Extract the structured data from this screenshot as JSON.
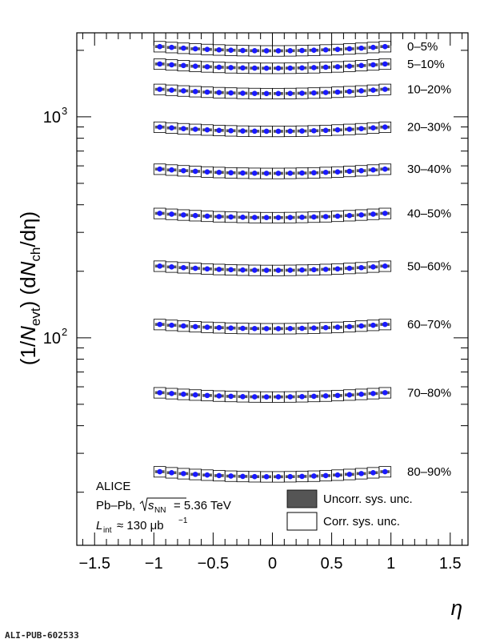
{
  "chart_data": {
    "type": "scatter",
    "xlabel": "η",
    "ylabel_parts": {
      "open": "(1/",
      "n": "N",
      "n_sub": "evt",
      "mid": ") (d",
      "n2": "N",
      "n2_sub": "ch",
      "close": "/dη)"
    },
    "yscale": "log",
    "xlim": [
      -1.65,
      1.65
    ],
    "ylim": [
      11.5,
      2400
    ],
    "x_ticks": [
      -1.5,
      -1,
      -0.5,
      0,
      0.5,
      1,
      1.5
    ],
    "x_tick_labels": [
      "−1.5",
      "−1",
      "−0.5",
      "0",
      "0.5",
      "1",
      "1.5"
    ],
    "y_tick_labels": [
      {
        "value": 100,
        "base": "10",
        "exp": "2"
      },
      {
        "value": 1000,
        "base": "10",
        "exp": "3"
      }
    ],
    "x": [
      -0.95,
      -0.85,
      -0.75,
      -0.65,
      -0.55,
      -0.45,
      -0.35,
      -0.25,
      -0.15,
      -0.05,
      0.05,
      0.15,
      0.25,
      0.35,
      0.45,
      0.55,
      0.65,
      0.75,
      0.85,
      0.95
    ],
    "x_bin_half_width": 0.05,
    "series": [
      {
        "name": "0–5%",
        "center": 1990,
        "edge_rise": 0.05
      },
      {
        "name": "5–10%",
        "center": 1660,
        "edge_rise": 0.05
      },
      {
        "name": "10–20%",
        "center": 1275,
        "edge_rise": 0.05
      },
      {
        "name": "20–30%",
        "center": 860,
        "edge_rise": 0.05
      },
      {
        "name": "30–40%",
        "center": 555,
        "edge_rise": 0.05
      },
      {
        "name": "40–50%",
        "center": 350,
        "edge_rise": 0.05
      },
      {
        "name": "50–60%",
        "center": 202,
        "edge_rise": 0.05
      },
      {
        "name": "60–70%",
        "center": 110,
        "edge_rise": 0.05
      },
      {
        "name": "70–80%",
        "center": 54,
        "edge_rise": 0.05
      },
      {
        "name": "80–90%",
        "center": 23.5,
        "edge_rise": 0.06
      }
    ],
    "corr_sys_frac": 0.055,
    "uncorr_sys_frac": 0.015,
    "annotations": {
      "experiment": "ALICE",
      "system": "Pb–Pb,",
      "sqrt_s_symbol": "s",
      "sqrt_s_sub": "NN",
      "energy": "= 5.36 TeV",
      "lumi_symbol": "L",
      "lumi_sub": "int",
      "lumi_value": "≈ 130 μb",
      "lumi_exp": "−1"
    },
    "legend": {
      "position": "bottom-right",
      "entries": [
        "Uncorr. sys. unc.",
        "Corr. sys. unc."
      ]
    },
    "colors": {
      "marker": "#1a1aff",
      "uncorr_fill": "#555555",
      "corr_box": "#000000"
    },
    "grid": false
  },
  "footer_id": "ALI-PUB-602533"
}
